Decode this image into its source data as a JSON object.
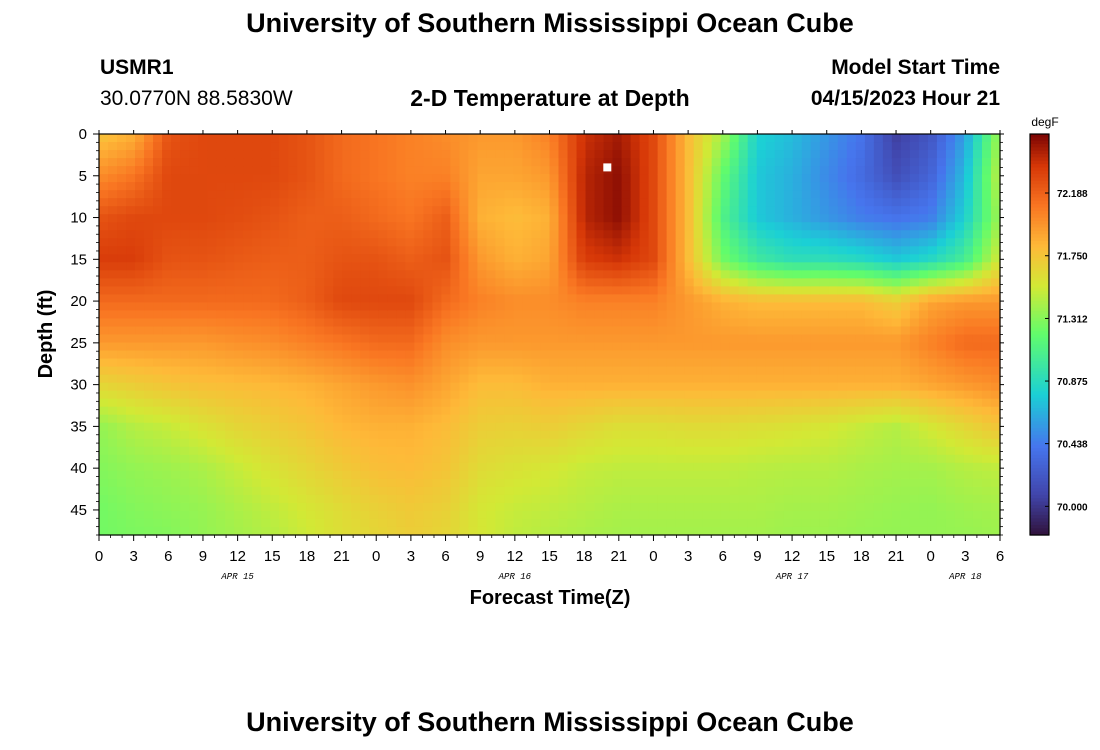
{
  "header": {
    "title": "University of Southern Mississippi Ocean Cube",
    "station_id": "USMR1",
    "station_coords": "30.0770N  88.5830W",
    "plot_title": "2-D Temperature at Depth",
    "model_start_label": "Model Start Time",
    "model_start_value": "04/15/2023 Hour 21"
  },
  "footer": {
    "title": "University of Southern Mississippi Ocean Cube"
  },
  "colors": {
    "marker": "#ffffff",
    "axis": "#000000"
  },
  "chart_data": {
    "type": "heatmap",
    "title": "2-D Temperature at Depth",
    "xlabel": "Forecast Time(Z)",
    "ylabel": "Depth (ft)",
    "units": "degF",
    "x_range_hours": [
      0,
      78
    ],
    "y_range_ft": [
      0,
      48
    ],
    "x_tick_labels": [
      "0",
      "3",
      "6",
      "9",
      "12",
      "15",
      "18",
      "21",
      "0",
      "3",
      "6",
      "9",
      "12",
      "15",
      "18",
      "21",
      "0",
      "3",
      "6",
      "9",
      "12",
      "15",
      "18",
      "21",
      "0",
      "3",
      "6"
    ],
    "y_tick_labels": [
      "0",
      "5",
      "10",
      "15",
      "20",
      "25",
      "30",
      "35",
      "40",
      "45"
    ],
    "date_labels": [
      {
        "text": "APR 15",
        "hour": 12
      },
      {
        "text": "APR 16",
        "hour": 36
      },
      {
        "text": "APR 17",
        "hour": 60
      },
      {
        "text": "APR 18",
        "hour": 75
      }
    ],
    "colorbar": {
      "label": "degF",
      "min": 69.8,
      "max": 72.6,
      "tick_labels": [
        "72.188",
        "71.750",
        "71.312",
        "70.875",
        "70.438",
        "70.000"
      ],
      "tick_values": [
        72.188,
        71.75,
        71.312,
        70.875,
        70.438,
        70.0
      ]
    },
    "marker": {
      "hour": 44,
      "depth_ft": 4
    },
    "depths_ft": [
      0,
      5,
      10,
      15,
      20,
      25,
      30,
      35,
      40,
      45,
      48
    ],
    "grid": [
      {
        "hour": 0,
        "temps": [
          71.75,
          72.0,
          72.25,
          72.35,
          72.15,
          71.95,
          71.65,
          71.35,
          71.3,
          71.25,
          71.25
        ]
      },
      {
        "hour": 3,
        "temps": [
          71.85,
          72.1,
          72.3,
          72.35,
          72.15,
          71.95,
          71.7,
          71.45,
          71.35,
          71.3,
          71.28
        ]
      },
      {
        "hour": 6,
        "temps": [
          72.25,
          72.3,
          72.3,
          72.25,
          72.15,
          71.95,
          71.75,
          71.5,
          71.38,
          71.33,
          71.3
        ]
      },
      {
        "hour": 9,
        "temps": [
          72.3,
          72.3,
          72.3,
          72.25,
          72.15,
          71.95,
          71.78,
          71.58,
          71.42,
          71.36,
          71.35
        ]
      },
      {
        "hour": 12,
        "temps": [
          72.3,
          72.3,
          72.28,
          72.22,
          72.15,
          71.98,
          71.8,
          71.65,
          71.5,
          71.42,
          71.4
        ]
      },
      {
        "hour": 15,
        "temps": [
          72.3,
          72.3,
          72.25,
          72.2,
          72.15,
          72.0,
          71.82,
          71.7,
          71.58,
          71.48,
          71.45
        ]
      },
      {
        "hour": 18,
        "temps": [
          72.25,
          72.25,
          72.2,
          72.2,
          72.2,
          72.05,
          71.85,
          71.75,
          71.65,
          71.55,
          71.52
        ]
      },
      {
        "hour": 21,
        "temps": [
          72.15,
          72.15,
          72.2,
          72.25,
          72.3,
          72.1,
          71.9,
          71.82,
          71.72,
          71.62,
          71.6
        ]
      },
      {
        "hour": 24,
        "temps": [
          72.1,
          72.1,
          72.15,
          72.25,
          72.3,
          72.15,
          71.95,
          71.85,
          71.78,
          71.68,
          71.65
        ]
      },
      {
        "hour": 27,
        "temps": [
          72.05,
          72.05,
          72.1,
          72.2,
          72.3,
          72.15,
          71.98,
          71.85,
          71.8,
          71.72,
          71.7
        ]
      },
      {
        "hour": 30,
        "temps": [
          72.0,
          72.05,
          72.2,
          72.25,
          72.15,
          72.0,
          71.9,
          71.8,
          71.75,
          71.68,
          71.65
        ]
      },
      {
        "hour": 33,
        "temps": [
          71.95,
          71.9,
          71.85,
          71.95,
          72.05,
          71.95,
          71.8,
          71.7,
          71.62,
          71.55,
          71.55
        ]
      },
      {
        "hour": 36,
        "temps": [
          71.95,
          71.9,
          71.8,
          71.85,
          72.0,
          71.95,
          71.8,
          71.68,
          71.58,
          71.5,
          71.48
        ]
      },
      {
        "hour": 39,
        "temps": [
          72.05,
          71.95,
          71.85,
          71.9,
          72.0,
          71.95,
          71.85,
          71.7,
          71.55,
          71.48,
          71.45
        ]
      },
      {
        "hour": 42,
        "temps": [
          72.4,
          72.45,
          72.45,
          72.35,
          72.05,
          71.95,
          71.85,
          71.65,
          71.5,
          71.45,
          71.42
        ]
      },
      {
        "hour": 45,
        "temps": [
          72.5,
          72.55,
          72.55,
          72.4,
          72.05,
          71.95,
          71.85,
          71.6,
          71.48,
          71.42,
          71.4
        ]
      },
      {
        "hour": 48,
        "temps": [
          72.3,
          72.3,
          72.3,
          72.3,
          72.05,
          71.95,
          71.85,
          71.6,
          71.48,
          71.42,
          71.4
        ]
      },
      {
        "hour": 51,
        "temps": [
          71.8,
          71.8,
          71.8,
          71.8,
          71.95,
          71.95,
          71.85,
          71.62,
          71.48,
          71.42,
          71.4
        ]
      },
      {
        "hour": 54,
        "temps": [
          71.4,
          71.2,
          71.1,
          71.25,
          71.85,
          71.95,
          71.85,
          71.62,
          71.48,
          71.42,
          71.4
        ]
      },
      {
        "hour": 57,
        "temps": [
          70.8,
          70.75,
          70.75,
          71.0,
          71.8,
          71.95,
          71.85,
          71.6,
          71.46,
          71.42,
          71.4
        ]
      },
      {
        "hour": 60,
        "temps": [
          70.7,
          70.65,
          70.65,
          70.9,
          71.8,
          71.95,
          71.85,
          71.58,
          71.45,
          71.4,
          71.38
        ]
      },
      {
        "hour": 63,
        "temps": [
          70.55,
          70.5,
          70.55,
          70.9,
          71.8,
          71.95,
          71.85,
          71.55,
          71.45,
          71.4,
          71.38
        ]
      },
      {
        "hour": 66,
        "temps": [
          70.4,
          70.35,
          70.45,
          70.85,
          71.8,
          71.95,
          71.85,
          71.5,
          71.42,
          71.38,
          71.36
        ]
      },
      {
        "hour": 69,
        "temps": [
          70.05,
          70.15,
          70.4,
          70.75,
          71.7,
          71.95,
          71.85,
          71.45,
          71.4,
          71.36,
          71.35
        ]
      },
      {
        "hour": 72,
        "temps": [
          70.2,
          70.3,
          70.45,
          70.85,
          71.9,
          72.05,
          71.9,
          71.55,
          71.4,
          71.35,
          71.35
        ]
      },
      {
        "hour": 75,
        "temps": [
          70.6,
          70.7,
          70.8,
          71.05,
          71.95,
          72.15,
          71.95,
          71.65,
          71.45,
          71.38,
          71.36
        ]
      },
      {
        "hour": 78,
        "temps": [
          71.4,
          71.5,
          71.4,
          71.55,
          71.95,
          72.15,
          72.0,
          71.75,
          71.48,
          71.4,
          71.38
        ]
      }
    ]
  }
}
